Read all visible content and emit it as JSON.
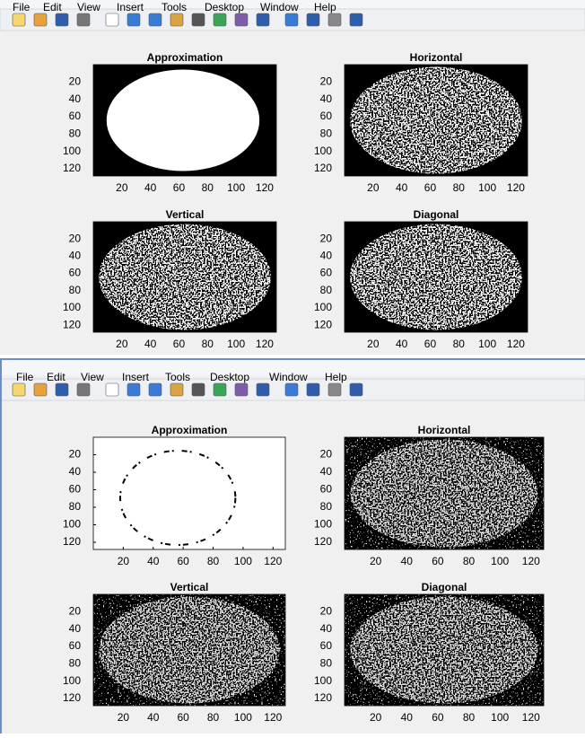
{
  "windows": [
    {
      "menu": [
        "File",
        "Edit",
        "View",
        "Insert",
        "Tools",
        "Desktop",
        "Window",
        "Help"
      ],
      "plots": [
        {
          "title": "Approximation",
          "xticks": [
            20,
            40,
            60,
            80,
            100,
            120
          ],
          "yticks": [
            20,
            40,
            60,
            80,
            100,
            120
          ]
        },
        {
          "title": "Horizontal",
          "xticks": [
            20,
            40,
            60,
            80,
            100,
            120
          ],
          "yticks": [
            20,
            40,
            60,
            80,
            100,
            120
          ]
        },
        {
          "title": "Vertical",
          "xticks": [
            20,
            40,
            60,
            80,
            100,
            120
          ],
          "yticks": [
            20,
            40,
            60,
            80,
            100,
            120
          ]
        },
        {
          "title": "Diagonal",
          "xticks": [
            20,
            40,
            60,
            80,
            100,
            120
          ],
          "yticks": [
            20,
            40,
            60,
            80,
            100,
            120
          ]
        }
      ]
    },
    {
      "menu": [
        "File",
        "Edit",
        "View",
        "Insert",
        "Tools",
        "Desktop",
        "Window",
        "Help"
      ],
      "plots": [
        {
          "title": "Approximation",
          "xticks": [
            20,
            40,
            60,
            80,
            100,
            120
          ],
          "yticks": [
            20,
            40,
            60,
            80,
            100,
            120
          ]
        },
        {
          "title": "Horizontal",
          "xticks": [
            20,
            40,
            60,
            80,
            100,
            120
          ],
          "yticks": [
            20,
            40,
            60,
            80,
            100,
            120
          ]
        },
        {
          "title": "Vertical",
          "xticks": [
            20,
            40,
            60,
            80,
            100,
            120
          ],
          "yticks": [
            20,
            40,
            60,
            80,
            100,
            120
          ]
        },
        {
          "title": "Diagonal",
          "xticks": [
            20,
            40,
            60,
            80,
            100,
            120
          ],
          "yticks": [
            20,
            40,
            60,
            80,
            100,
            120
          ]
        }
      ]
    }
  ]
}
